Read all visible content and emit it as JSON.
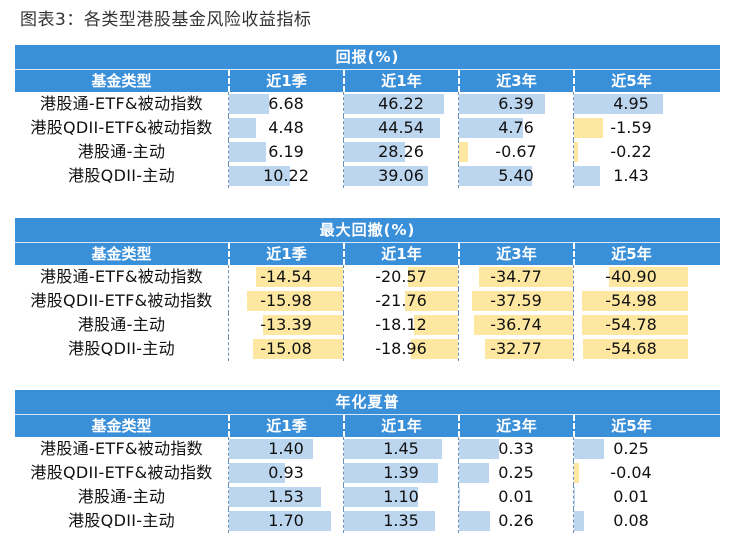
{
  "caption": "图表3：各类型港股基金风险收益指标",
  "colors": {
    "header": "#3a8fd9",
    "positive_bar": "#bcd6ef",
    "negative_bar": "#fde7a1"
  },
  "sections": [
    {
      "title": "回报(%)",
      "name_header": "基金类型",
      "columns": [
        "近1季",
        "近1年",
        "近3年",
        "近5年"
      ],
      "rows": [
        {
          "name": "港股通-ETF&被动指数",
          "values": [
            "6.68",
            "46.22",
            "6.39",
            "4.95"
          ]
        },
        {
          "name": "港股QDII-ETF&被动指数",
          "values": [
            "4.48",
            "44.54",
            "4.76",
            "-1.59"
          ]
        },
        {
          "name": "港股通-主动",
          "values": [
            "6.19",
            "28.26",
            "-0.67",
            "-0.22"
          ]
        },
        {
          "name": "港股QDII-主动",
          "values": [
            "10.22",
            "39.06",
            "5.40",
            "1.43"
          ]
        }
      ]
    },
    {
      "title": "最大回撤(%)",
      "name_header": "基金类型",
      "columns": [
        "近1季",
        "近1年",
        "近3年",
        "近5年"
      ],
      "rows": [
        {
          "name": "港股通-ETF&被动指数",
          "values": [
            "-14.54",
            "-20.57",
            "-34.77",
            "-40.90"
          ]
        },
        {
          "name": "港股QDII-ETF&被动指数",
          "values": [
            "-15.98",
            "-21.76",
            "-37.59",
            "-54.98"
          ]
        },
        {
          "name": "港股通-主动",
          "values": [
            "-13.39",
            "-18.12",
            "-36.74",
            "-54.78"
          ]
        },
        {
          "name": "港股QDII-主动",
          "values": [
            "-15.08",
            "-18.96",
            "-32.77",
            "-54.68"
          ]
        }
      ]
    },
    {
      "title": "年化夏普",
      "name_header": "基金类型",
      "columns": [
        "近1季",
        "近1年",
        "近3年",
        "近5年"
      ],
      "rows": [
        {
          "name": "港股通-ETF&被动指数",
          "values": [
            "1.40",
            "1.45",
            "0.33",
            "0.25"
          ]
        },
        {
          "name": "港股QDII-ETF&被动指数",
          "values": [
            "0.93",
            "1.39",
            "0.25",
            "-0.04"
          ]
        },
        {
          "name": "港股通-主动",
          "values": [
            "1.53",
            "1.10",
            "0.01",
            "0.01"
          ]
        },
        {
          "name": "港股QDII-主动",
          "values": [
            "1.70",
            "1.35",
            "0.26",
            "0.08"
          ]
        }
      ]
    }
  ]
}
